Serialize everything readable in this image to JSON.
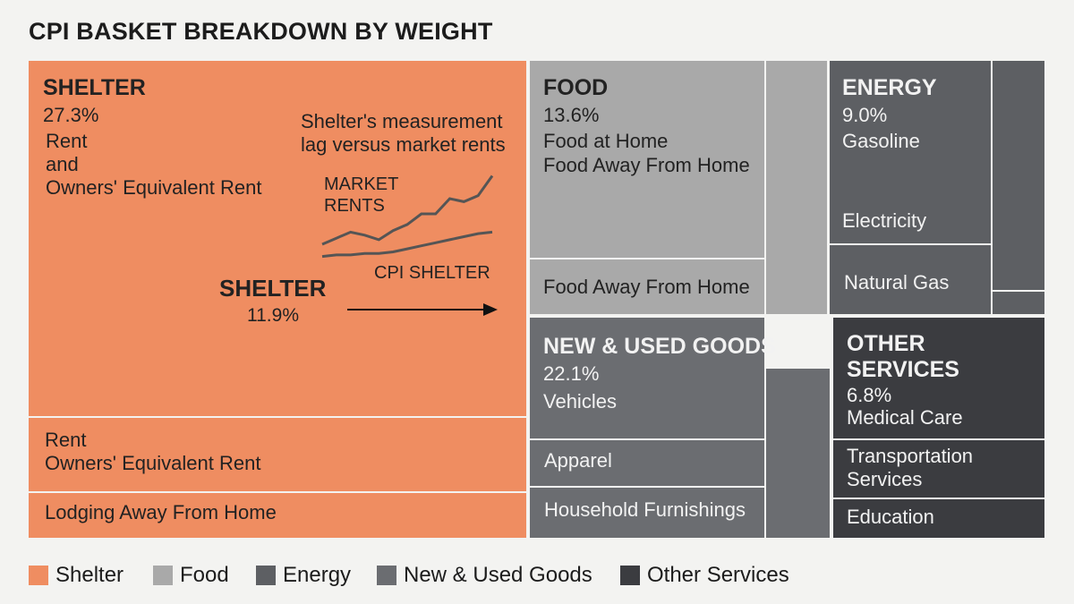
{
  "title": "CPI BASKET BREAKDOWN BY WEIGHT",
  "colors": {
    "shelter": "#ef8d61",
    "food": "#a9a9a9",
    "energy": "#5d5f63",
    "goods": "#6b6d71",
    "other": "#3b3c40"
  },
  "shelter": {
    "label": "SHELTER",
    "pct": "27.3%",
    "line1": "Rent",
    "line2": "and",
    "line3": "Owners' Equivalent Rent",
    "sub1_line1": "Rent",
    "sub1_line2": "Owners' Equivalent Rent",
    "sub2": "Lodging Away From Home",
    "inset": {
      "caption_line1": "Shelter's measurement",
      "caption_line2": "lag versus market rents",
      "market_label_line1": "MARKET",
      "market_label_line2": "RENTS",
      "cpi_label": "CPI SHELTER",
      "shelter_label": "SHELTER",
      "shelter_pct": "11.9%"
    }
  },
  "food": {
    "label": "FOOD",
    "pct": "13.6%",
    "line1": "Food at Home",
    "line2": "Food Away From Home",
    "sub1": "Food Away From Home"
  },
  "energy": {
    "label": "ENERGY",
    "pct": "9.0%",
    "line1": "Gasoline",
    "sub1": "Electricity",
    "sub2": "Natural Gas"
  },
  "goods": {
    "label": "NEW & USED GOODS",
    "pct": "22.1%",
    "line1": "Vehicles",
    "sub1": "Apparel",
    "sub2": "Household Furnishings"
  },
  "other": {
    "label_line1": "OTHER",
    "label_line2": "SERVICES",
    "pct": "6.8%",
    "line1": "Medical Care",
    "sub1_line1": "Transportation",
    "sub1_line2": "Services",
    "sub2": "Education"
  },
  "legend": [
    {
      "label": "Shelter",
      "color": "#ef8d61"
    },
    {
      "label": "Food",
      "color": "#a9a9a9"
    },
    {
      "label": "Energy",
      "color": "#5d5f63"
    },
    {
      "label": "New & Used Goods",
      "color": "#6b6d71"
    },
    {
      "label": "Other Services",
      "color": "#3b3c40"
    }
  ],
  "chart_data": [
    {
      "type": "treemap",
      "title": "CPI BASKET BREAKDOWN BY WEIGHT",
      "categories": [
        "Shelter",
        "Food",
        "Energy",
        "New & Used Goods",
        "Other Services"
      ],
      "values": [
        27.3,
        13.6,
        9.0,
        22.1,
        6.8
      ],
      "unit": "%",
      "children": {
        "Shelter": [
          "Rent",
          "Owners' Equivalent Rent",
          "Lodging Away From Home"
        ],
        "Food": [
          "Food at Home",
          "Food Away From Home"
        ],
        "Energy": [
          "Gasoline",
          "Electricity",
          "Natural Gas"
        ],
        "New & Used Goods": [
          "Vehicles",
          "Apparel",
          "Household Furnishings"
        ],
        "Other Services": [
          "Medical Care",
          "Transportation Services",
          "Education"
        ]
      }
    },
    {
      "type": "line",
      "title": "Shelter's measurement lag versus market rents",
      "x": [
        0,
        1,
        2,
        3,
        4,
        5,
        6,
        7,
        8,
        9,
        10,
        11,
        12
      ],
      "series": [
        {
          "name": "MARKET RENTS",
          "values": [
            10,
            14,
            18,
            16,
            13,
            19,
            23,
            30,
            30,
            40,
            38,
            42,
            55
          ]
        },
        {
          "name": "CPI SHELTER",
          "values": [
            2,
            3,
            3,
            4,
            4,
            5,
            7,
            9,
            11,
            13,
            15,
            17,
            18
          ]
        }
      ]
    }
  ]
}
